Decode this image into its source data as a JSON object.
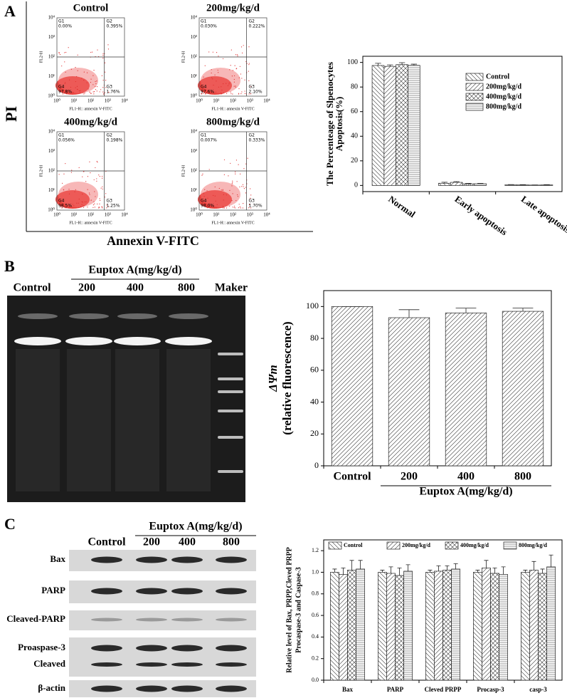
{
  "panel_labels": [
    "A",
    "B",
    "C"
  ],
  "flow": {
    "y_axis": "PI",
    "x_axis": "Annexin V-FITC",
    "fl2": "FL2-H",
    "fl1": "FL1-H:: annexin V-FITC",
    "axis_ticks": [
      "10⁰",
      "10¹",
      "10²",
      "10³",
      "10⁴"
    ],
    "plots": [
      {
        "title": "Control",
        "quadrants": [
          {
            "name": "G1",
            "value": "0.00%"
          },
          {
            "name": "G2",
            "value": "0.395%"
          },
          {
            "name": "G3",
            "value": "1.76%"
          },
          {
            "name": "G4",
            "value": "97.8%"
          }
        ]
      },
      {
        "title": "200mg/kg/d",
        "quadrants": [
          {
            "name": "G1",
            "value": "0.030%"
          },
          {
            "name": "G2",
            "value": "0.222%"
          },
          {
            "name": "G3",
            "value": "2.10%"
          },
          {
            "name": "G4",
            "value": "97.6%"
          }
        ]
      },
      {
        "title": "400mg/kg/d",
        "quadrants": [
          {
            "name": "G1",
            "value": "0.056%"
          },
          {
            "name": "G2",
            "value": "0.198%"
          },
          {
            "name": "G3",
            "value": "1.25%"
          },
          {
            "name": "G4",
            "value": "98.5%"
          }
        ]
      },
      {
        "title": "800mg/kg/d",
        "quadrants": [
          {
            "name": "G1",
            "value": "0.007%"
          },
          {
            "name": "G2",
            "value": "0.333%"
          },
          {
            "name": "G3",
            "value": "1.70%"
          },
          {
            "name": "G4",
            "value": "98.0%"
          }
        ]
      }
    ]
  },
  "gel": {
    "group_label": "Euptox A(mg/kg/d)",
    "lanes": [
      "Control",
      "200",
      "400",
      "800",
      "Maker"
    ]
  },
  "western": {
    "group_label": "Euptox A(mg/kg/d)",
    "lanes": [
      "Control",
      "200",
      "400",
      "800"
    ],
    "rows": [
      "Bax",
      "PARP",
      "Cleaved-PARP",
      "Proaspase-3",
      "Cleaved",
      "β-actin"
    ]
  },
  "chart_data": [
    {
      "type": "bar",
      "ylabel": [
        "The Percenteage of Slpenocytes",
        "Apoptosis(%)"
      ],
      "categories": [
        "Normal",
        "Early apoptosis",
        "Late apoptosis Necrosis"
      ],
      "series": [
        {
          "name": "Control",
          "color": "#ffffff",
          "hatch": "back-diagonal",
          "values": [
            97.5,
            1.8,
            0.5
          ],
          "errors": [
            1.8,
            0.8,
            0.2
          ]
        },
        {
          "name": "200mg/kg/d",
          "color": "#ffffff",
          "hatch": "diagonal",
          "values": [
            96.8,
            2.5,
            0.4
          ],
          "errors": [
            1.2,
            0.6,
            0.2
          ]
        },
        {
          "name": "400mg/kg/d",
          "color": "#ffffff",
          "hatch": "cross",
          "values": [
            98.2,
            1.3,
            0.3
          ],
          "errors": [
            1.6,
            0.4,
            0.1
          ]
        },
        {
          "name": "800mg/kg/d",
          "color": "#ffffff",
          "hatch": "horizontal",
          "values": [
            97.6,
            1.4,
            0.4
          ],
          "errors": [
            1.0,
            0.3,
            0.2
          ]
        }
      ],
      "ylim": [
        -5,
        105
      ],
      "yticks": [
        0,
        20,
        40,
        60,
        80,
        100
      ],
      "legend": "upper right"
    },
    {
      "type": "bar",
      "ylabel": [
        "ΔΨm",
        "(relative fluorescence)"
      ],
      "categories": [
        "Control",
        "200",
        "400",
        "800"
      ],
      "values": [
        100,
        93,
        96,
        97
      ],
      "errors": [
        0,
        5,
        3,
        2
      ],
      "color": "#ffffff",
      "hatch": "diagonal",
      "xgroup_label": "Euptox A(mg/kg/d)",
      "ylim": [
        0,
        110
      ],
      "yticks": [
        0,
        20,
        40,
        60,
        80,
        100
      ]
    },
    {
      "type": "bar",
      "ylabel": [
        "Relative level of Bax, PRPP,Cleved PRPP",
        "Procaspase-3 and Caspase-3"
      ],
      "categories": [
        "Bax",
        "PARP",
        "Cleved PRPP",
        "Procasp-3",
        "casp-3"
      ],
      "series": [
        {
          "name": "Control",
          "color": "#ffffff",
          "hatch": "back-diagonal",
          "values": [
            1.0,
            1.0,
            1.0,
            1.0,
            1.0
          ],
          "errors": [
            0.03,
            0.02,
            0.02,
            0.02,
            0.02
          ]
        },
        {
          "name": "200mg/kg/d",
          "color": "#ffffff",
          "hatch": "diagonal",
          "values": [
            0.98,
            0.99,
            1.01,
            1.04,
            1.02
          ],
          "errors": [
            0.06,
            0.06,
            0.05,
            0.07,
            0.08
          ]
        },
        {
          "name": "400mg/kg/d",
          "color": "#ffffff",
          "hatch": "cross",
          "values": [
            1.02,
            0.97,
            1.02,
            0.99,
            0.99
          ],
          "errors": [
            0.09,
            0.07,
            0.04,
            0.05,
            0.04
          ]
        },
        {
          "name": "800mg/kg/d",
          "color": "#ffffff",
          "hatch": "horizontal",
          "values": [
            1.03,
            1.01,
            1.03,
            0.98,
            1.05
          ],
          "errors": [
            0.08,
            0.06,
            0.05,
            0.07,
            0.11
          ]
        }
      ],
      "ylim": [
        0,
        1.3
      ],
      "yticks": [
        {
          "value": 0,
          "label": "0.0"
        },
        0.2,
        0.4,
        0.6,
        0.8,
        {
          "value": 1,
          "label": "1.0"
        },
        1.2
      ],
      "legend": "top"
    }
  ]
}
